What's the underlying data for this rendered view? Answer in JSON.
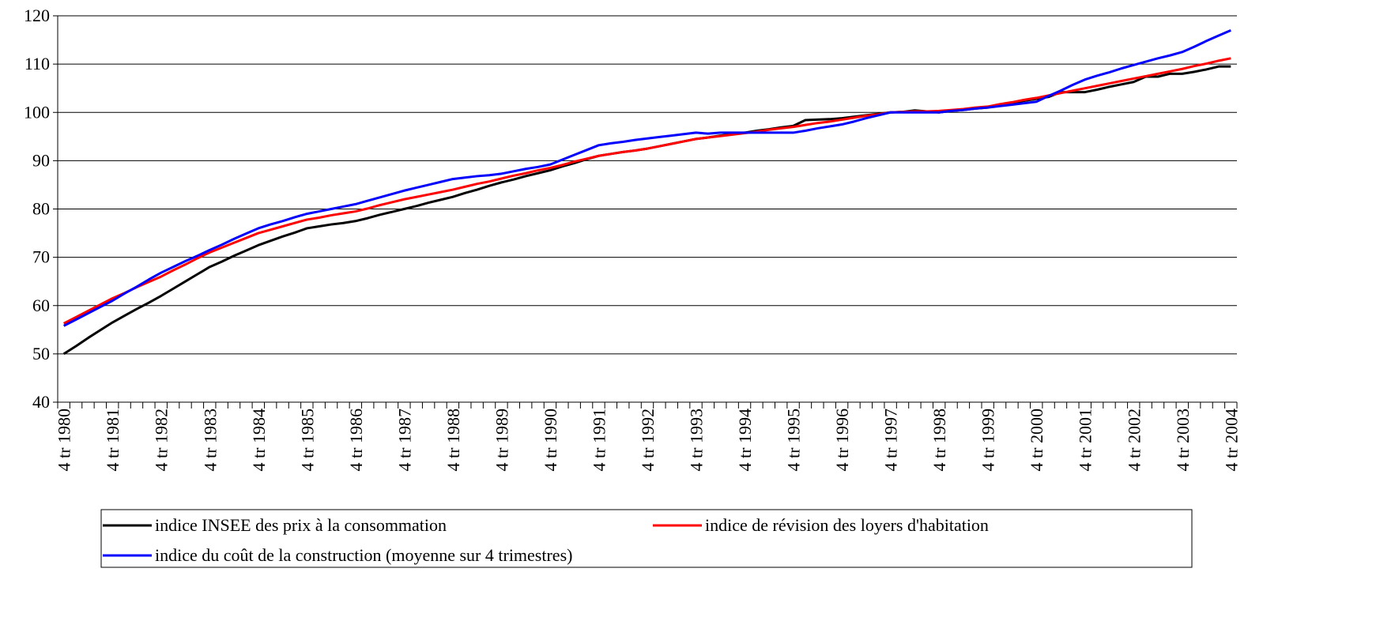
{
  "chart_data": {
    "type": "line",
    "categories": [
      "4 tr 1980",
      null,
      null,
      null,
      "4 tr 1981",
      null,
      null,
      null,
      "4 tr 1982",
      null,
      null,
      null,
      "4 tr 1983",
      null,
      null,
      null,
      "4 tr 1984",
      null,
      null,
      null,
      "4 tr 1985",
      null,
      null,
      null,
      "4 tr 1986",
      null,
      null,
      null,
      "4 tr 1987",
      null,
      null,
      null,
      "4 tr 1988",
      null,
      null,
      null,
      "4 tr 1989",
      null,
      null,
      null,
      "4 tr 1990",
      null,
      null,
      null,
      "4 tr 1991",
      null,
      null,
      null,
      "4 tr 1992",
      null,
      null,
      null,
      "4 tr 1993",
      null,
      null,
      null,
      "4 tr 1994",
      null,
      null,
      null,
      "4 tr 1995",
      null,
      null,
      null,
      "4 tr 1996",
      null,
      null,
      null,
      "4 tr 1997",
      null,
      null,
      null,
      "4 tr 1998",
      null,
      null,
      null,
      "4 tr 1999",
      null,
      null,
      null,
      "4 tr 2000",
      null,
      null,
      null,
      "4 tr 2001",
      null,
      null,
      null,
      "4 tr 2002",
      null,
      null,
      null,
      "4 tr 2003",
      null,
      null,
      null,
      "4 tr 2004"
    ],
    "series": [
      {
        "name": "indice INSEE des prix à la consommation",
        "color": "#000000",
        "values": [
          50,
          51.6,
          53.3,
          54.9,
          56.5,
          57.9,
          59.3,
          60.6,
          62,
          63.5,
          65,
          66.5,
          68,
          69.1,
          70.3,
          71.4,
          72.5,
          73.4,
          74.3,
          75.1,
          76,
          76.4,
          76.8,
          77.1,
          77.5,
          78.1,
          78.8,
          79.4,
          80,
          80.6,
          81.3,
          81.9,
          82.5,
          83.3,
          84,
          84.8,
          85.5,
          86.1,
          86.8,
          87.4,
          88,
          88.8,
          89.5,
          90.3,
          91,
          91.4,
          91.8,
          92.1,
          92.5,
          93,
          93.5,
          94,
          94.5,
          94.8,
          95.2,
          95.5,
          95.8,
          96.2,
          96.5,
          96.9,
          97.2,
          98.4,
          98.5,
          98.6,
          98.8,
          99.1,
          99.4,
          99.7,
          100,
          100.1,
          100.4,
          100.2,
          100,
          100.3,
          100.5,
          100.8,
          101,
          101.5,
          101.9,
          102.4,
          102.8,
          103.2,
          104.2,
          104.2,
          104.2,
          104.7,
          105.3,
          105.8,
          106.3,
          107.4,
          107.4,
          108,
          108,
          108.4,
          108.9,
          109.5,
          109.5
        ]
      },
      {
        "name": "indice de révision des loyers d'habitation",
        "color": "#ff0000",
        "values": [
          56.3,
          57.6,
          58.9,
          60.2,
          61.5,
          62.6,
          63.8,
          64.9,
          66,
          67.3,
          68.5,
          69.8,
          71,
          72,
          73,
          74,
          75,
          75.7,
          76.4,
          77.1,
          77.8,
          78.2,
          78.7,
          79.1,
          79.5,
          80.1,
          80.8,
          81.4,
          82,
          82.5,
          83,
          83.5,
          84,
          84.6,
          85.2,
          85.7,
          86.3,
          86.9,
          87.4,
          88,
          88.5,
          89.1,
          89.8,
          90.4,
          91,
          91.4,
          91.8,
          92.1,
          92.5,
          93,
          93.5,
          94,
          94.5,
          94.8,
          95.1,
          95.4,
          95.7,
          96,
          96.4,
          96.7,
          97,
          97.4,
          97.8,
          98.1,
          98.5,
          98.9,
          99.3,
          99.6,
          100,
          100.1,
          100.2,
          100.2,
          100.3,
          100.5,
          100.7,
          101,
          101.2,
          101.7,
          102.1,
          102.6,
          103,
          103.5,
          104,
          104.5,
          105,
          105.5,
          106,
          106.5,
          107,
          107.5,
          108,
          108.5,
          109,
          109.6,
          110.1,
          110.7,
          111.2
        ]
      },
      {
        "name": "indice du coût de la construction (moyenne sur 4 trimestres)",
        "color": "#0000ff",
        "values": [
          55.8,
          57.1,
          58.4,
          59.7,
          61,
          62.5,
          63.9,
          65.4,
          66.8,
          68,
          69.2,
          70.3,
          71.5,
          72.6,
          73.8,
          74.9,
          76,
          76.8,
          77.5,
          78.3,
          79,
          79.5,
          80,
          80.5,
          81,
          81.7,
          82.4,
          83.1,
          83.8,
          84.4,
          85,
          85.6,
          86.2,
          86.5,
          86.8,
          87,
          87.3,
          87.8,
          88.3,
          88.7,
          89.2,
          90.2,
          91.2,
          92.2,
          93.2,
          93.6,
          93.9,
          94.3,
          94.6,
          94.9,
          95.2,
          95.5,
          95.8,
          95.6,
          95.8,
          95.8,
          95.8,
          95.8,
          95.8,
          95.8,
          95.8,
          96.2,
          96.7,
          97.1,
          97.5,
          98.1,
          98.8,
          99.4,
          100,
          100,
          100,
          100,
          100,
          100.3,
          100.5,
          100.8,
          101,
          101.3,
          101.6,
          101.9,
          102.2,
          103.4,
          104.5,
          105.7,
          106.8,
          107.6,
          108.3,
          109.1,
          109.8,
          110.5,
          111.2,
          111.8,
          112.5,
          113.6,
          114.8,
          115.9,
          117
        ]
      }
    ],
    "ylim": [
      40,
      120
    ],
    "yticks": [
      40,
      50,
      60,
      70,
      80,
      90,
      100,
      110,
      120
    ],
    "grid": true,
    "legend": "bottom"
  }
}
